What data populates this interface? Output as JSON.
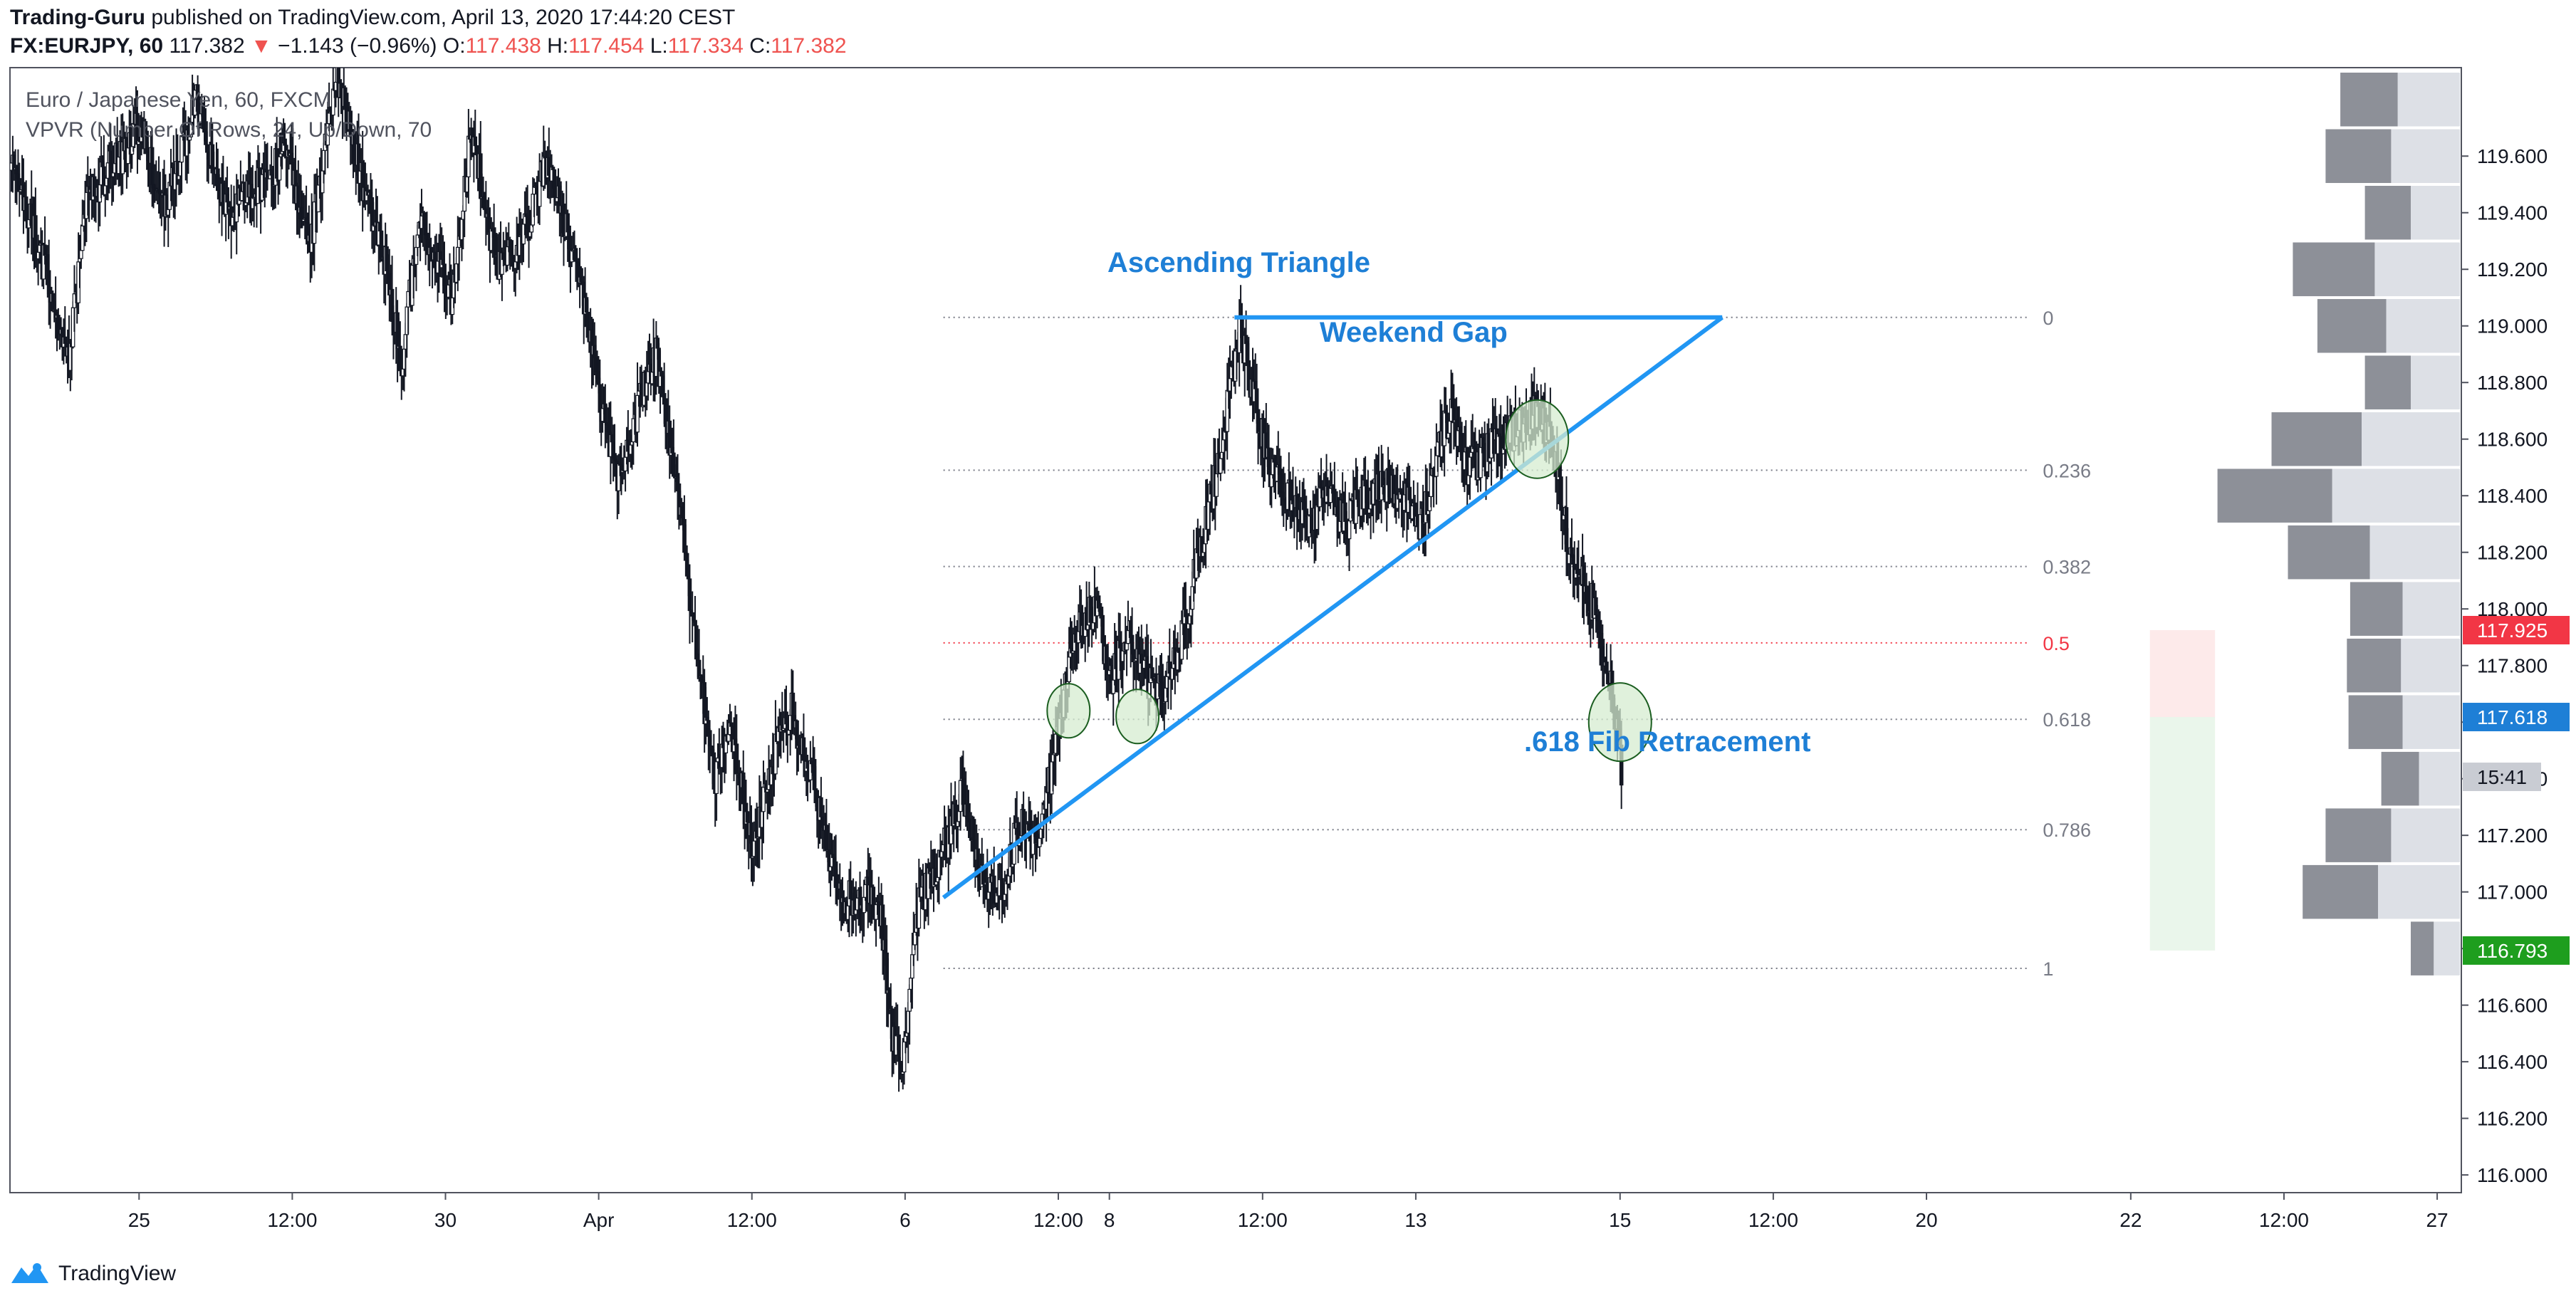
{
  "header": {
    "author": "Trading-Guru",
    "published": "published on TradingView.com, April 13, 2020 17:44:20 CEST",
    "symbol": "FX:EURJPY, 60",
    "last": "117.382",
    "change": "−1.143 (−0.96%)",
    "o_label": "O:",
    "o_value": "117.438",
    "h_label": "H:",
    "h_value": "117.454",
    "l_label": "L:",
    "l_value": "117.334",
    "c_label": "C:",
    "c_value": "117.382"
  },
  "legend": {
    "series": "Euro / Japanese Yen, 60, FXCM",
    "indicator": "VPVR (Number Of Rows, 24, Up/Down, 70"
  },
  "annotations": {
    "ascending_triangle": "Ascending Triangle",
    "weekend_gap": "Weekend Gap",
    "fib_retracement": ".618 Fib Retracement"
  },
  "price_tags": {
    "target": "117.925",
    "current": "117.618",
    "countdown": "15:41",
    "stop": "116.793"
  },
  "footer": {
    "brand": "TradingView"
  },
  "colors": {
    "annotation_blue": "#1e7fd6",
    "trendline_blue": "#2196f3",
    "fib_mid_red": "#f23645",
    "target_red": "#f23645",
    "current_blue": "#1e7fd6",
    "stop_green": "#1e9e1e",
    "circle_green": "#d6ecd0"
  },
  "chart_data": {
    "type": "candlestick",
    "title": "Euro / Japanese Yen, 60, FXCM",
    "xlabel": "",
    "ylabel": "",
    "ylim": [
      115.95,
      119.9
    ],
    "y_ticks": [
      116.0,
      116.2,
      116.4,
      116.6,
      116.8,
      117.0,
      117.2,
      117.4,
      117.6,
      117.8,
      118.0,
      118.2,
      118.4,
      118.6,
      118.8,
      119.0,
      119.2,
      119.4,
      119.6
    ],
    "y_tick_labels": [
      "116.000",
      "116.200",
      "116.400",
      "116.600",
      "116.800",
      "117.000",
      "117.200",
      "117.400",
      "117.600",
      "117.800",
      "118.000",
      "118.200",
      "118.400",
      "118.600",
      "118.800",
      "119.000",
      "119.200",
      "119.400",
      "119.600"
    ],
    "x_ticks": [
      {
        "label": "25",
        "t": 1.0
      },
      {
        "label": "12:00",
        "t": 2.2
      },
      {
        "label": "30",
        "t": 3.4
      },
      {
        "label": "Apr",
        "t": 4.6
      },
      {
        "label": "12:00",
        "t": 5.8
      },
      {
        "label": "6",
        "t": 7.0
      },
      {
        "label": "12:00",
        "t": 8.2
      },
      {
        "label": "8",
        "t": 8.6
      },
      {
        "label": "12:00",
        "t": 9.8
      },
      {
        "label": "13",
        "t": 11.0
      },
      {
        "label": "15",
        "t": 12.6
      },
      {
        "label": "12:00",
        "t": 13.8
      },
      {
        "label": "20",
        "t": 15.0
      },
      {
        "label": "22",
        "t": 16.6
      },
      {
        "label": "12:00",
        "t": 17.8
      },
      {
        "label": "27",
        "t": 19.0
      }
    ],
    "x_range": [
      0,
      19.1
    ],
    "price_path": [
      [
        0.0,
        119.55
      ],
      [
        0.2,
        119.3
      ],
      [
        0.45,
        118.9
      ],
      [
        0.6,
        119.45
      ],
      [
        0.85,
        119.6
      ],
      [
        1.0,
        119.7
      ],
      [
        1.2,
        119.4
      ],
      [
        1.45,
        119.8
      ],
      [
        1.7,
        119.4
      ],
      [
        1.95,
        119.5
      ],
      [
        2.15,
        119.6
      ],
      [
        2.35,
        119.3
      ],
      [
        2.55,
        119.9
      ],
      [
        2.75,
        119.5
      ],
      [
        2.95,
        119.2
      ],
      [
        3.05,
        118.85
      ],
      [
        3.2,
        119.4
      ],
      [
        3.45,
        119.1
      ],
      [
        3.6,
        119.7
      ],
      [
        3.8,
        119.2
      ],
      [
        4.0,
        119.3
      ],
      [
        4.2,
        119.6
      ],
      [
        4.45,
        119.15
      ],
      [
        4.6,
        118.75
      ],
      [
        4.75,
        118.45
      ],
      [
        4.9,
        118.7
      ],
      [
        5.05,
        118.9
      ],
      [
        5.2,
        118.45
      ],
      [
        5.35,
        117.9
      ],
      [
        5.5,
        117.4
      ],
      [
        5.65,
        117.55
      ],
      [
        5.8,
        117.15
      ],
      [
        5.95,
        117.45
      ],
      [
        6.1,
        117.65
      ],
      [
        6.3,
        117.35
      ],
      [
        6.5,
        116.95
      ],
      [
        6.65,
        117.0
      ],
      [
        6.8,
        116.95
      ],
      [
        6.9,
        116.5
      ],
      [
        6.98,
        116.4
      ],
      [
        7.1,
        116.95
      ],
      [
        7.3,
        117.15
      ],
      [
        7.45,
        117.35
      ],
      [
        7.6,
        117.05
      ],
      [
        7.75,
        117.0
      ],
      [
        7.9,
        117.25
      ],
      [
        8.05,
        117.15
      ],
      [
        8.2,
        117.6
      ],
      [
        8.35,
        117.95
      ],
      [
        8.5,
        118.0
      ],
      [
        8.6,
        117.75
      ],
      [
        8.75,
        117.9
      ],
      [
        8.9,
        117.75
      ],
      [
        9.0,
        117.7
      ],
      [
        9.15,
        117.85
      ],
      [
        9.3,
        118.2
      ],
      [
        9.45,
        118.5
      ],
      [
        9.55,
        118.8
      ],
      [
        9.62,
        119.0
      ],
      [
        9.75,
        118.7
      ],
      [
        9.85,
        118.5
      ],
      [
        10.0,
        118.4
      ],
      [
        10.15,
        118.3
      ],
      [
        10.3,
        118.4
      ],
      [
        10.45,
        118.3
      ],
      [
        10.6,
        118.4
      ],
      [
        10.75,
        118.45
      ],
      [
        10.9,
        118.4
      ],
      [
        11.05,
        118.3
      ],
      [
        11.2,
        118.6
      ],
      [
        11.28,
        118.7
      ],
      [
        11.4,
        118.5
      ],
      [
        11.55,
        118.55
      ],
      [
        11.65,
        118.6
      ],
      [
        11.75,
        118.62
      ],
      [
        11.85,
        118.65
      ],
      [
        11.95,
        118.7
      ],
      [
        12.05,
        118.6
      ],
      [
        12.12,
        118.45
      ],
      [
        12.2,
        118.2
      ],
      [
        12.3,
        118.1
      ],
      [
        12.4,
        118.0
      ],
      [
        12.5,
        117.8
      ],
      [
        12.58,
        117.6
      ],
      [
        12.62,
        117.35
      ]
    ],
    "ascending_triangle": {
      "resistance": {
        "t1": 9.58,
        "t2": 13.4,
        "price": 119.03
      },
      "support": {
        "t1": 7.3,
        "p1": 116.98,
        "t2": 13.4,
        "p2": 119.03
      }
    },
    "fib_levels": [
      {
        "ratio": "0",
        "price": 119.03
      },
      {
        "ratio": "0.236",
        "price": 118.49
      },
      {
        "ratio": "0.382",
        "price": 118.15
      },
      {
        "ratio": "0.5",
        "price": 117.88
      },
      {
        "ratio": "0.618",
        "price": 117.61
      },
      {
        "ratio": "0.786",
        "price": 117.22
      },
      {
        "ratio": "1",
        "price": 116.73
      }
    ],
    "fib_range_t": [
      7.3,
      15.8
    ],
    "highlight_circles": [
      {
        "t": 8.28,
        "price": 117.64
      },
      {
        "t": 8.82,
        "price": 117.62
      },
      {
        "t": 11.95,
        "price": 118.6
      },
      {
        "t": 12.6,
        "price": 117.6
      }
    ],
    "risk_reward": {
      "t1": 16.75,
      "t2": 17.26,
      "entry": 117.618,
      "target": 117.925,
      "stop": 116.793
    },
    "volume_profile": [
      {
        "price": 119.8,
        "up": 0.38,
        "down": 0.35
      },
      {
        "price": 119.6,
        "up": 0.42,
        "down": 0.4
      },
      {
        "price": 119.4,
        "up": 0.3,
        "down": 0.28
      },
      {
        "price": 119.2,
        "up": 0.52,
        "down": 0.5
      },
      {
        "price": 119.0,
        "up": 0.45,
        "down": 0.42
      },
      {
        "price": 118.8,
        "up": 0.3,
        "down": 0.28
      },
      {
        "price": 118.6,
        "up": 0.6,
        "down": 0.55
      },
      {
        "price": 118.4,
        "up": 0.78,
        "down": 0.7
      },
      {
        "price": 118.2,
        "up": 0.55,
        "down": 0.5
      },
      {
        "price": 118.0,
        "up": 0.35,
        "down": 0.32
      },
      {
        "price": 117.8,
        "up": 0.36,
        "down": 0.33
      },
      {
        "price": 117.6,
        "up": 0.35,
        "down": 0.33
      },
      {
        "price": 117.4,
        "up": 0.25,
        "down": 0.23
      },
      {
        "price": 117.2,
        "up": 0.42,
        "down": 0.4
      },
      {
        "price": 117.0,
        "up": 0.5,
        "down": 0.46
      },
      {
        "price": 116.8,
        "up": 0.16,
        "down": 0.14
      }
    ]
  }
}
